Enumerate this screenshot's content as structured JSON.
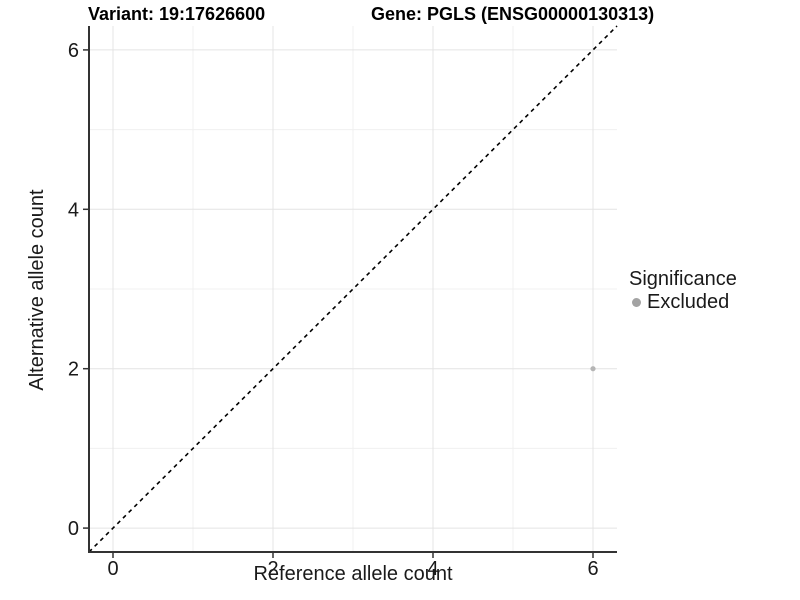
{
  "chart_data": {
    "type": "scatter",
    "title_left": "Variant: 19:17626600",
    "title_right": "Gene: PGLS (ENSG00000130313)",
    "xlabel": "Reference allele count",
    "ylabel": "Alternative allele count",
    "xlim": [
      -0.3,
      6.3
    ],
    "ylim": [
      -0.3,
      6.3
    ],
    "xticks": [
      0,
      2,
      4,
      6
    ],
    "yticks": [
      0,
      2,
      4,
      6
    ],
    "xticks_minor": [
      1,
      3,
      5
    ],
    "yticks_minor": [
      1,
      3,
      5
    ],
    "grid": "major and minor gridlines on white panel",
    "reference_line": {
      "kind": "identity y=x",
      "style": "dashed",
      "color": "#000000"
    },
    "series": [
      {
        "name": "Excluded",
        "color": "#b5b5b5",
        "point_radius": 2.6,
        "points": [
          {
            "x": 6,
            "y": 2
          }
        ]
      }
    ],
    "legend": {
      "title": "Significance",
      "position": "right",
      "items": [
        {
          "label": "Excluded",
          "color": "#a3a3a3",
          "marker": "circle"
        }
      ]
    },
    "style": {
      "axis_line_color": "#333333",
      "tick_color": "#333333",
      "major_grid_color": "#e4e4e4",
      "minor_grid_color": "#f0f0f0",
      "tick_label_color": "#1a1a1a",
      "background": "#ffffff"
    }
  }
}
